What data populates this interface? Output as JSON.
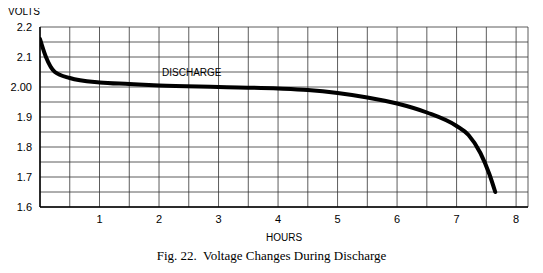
{
  "chart_data": {
    "type": "line",
    "title": "Fig. 22.  Voltage Changes During Discharge",
    "x_label": "HOURS",
    "y_label": "VOLTS",
    "x": [
      0,
      0.1,
      0.25,
      0.5,
      1,
      1.5,
      2,
      3,
      4,
      4.5,
      5,
      5.5,
      6,
      6.5,
      7,
      7.2,
      7.4,
      7.55,
      7.65
    ],
    "values": [
      2.16,
      2.1,
      2.05,
      2.03,
      2.015,
      2.01,
      2.005,
      2.0,
      1.995,
      1.99,
      1.98,
      1.965,
      1.945,
      1.915,
      1.87,
      1.84,
      1.78,
      1.71,
      1.65
    ],
    "color": "#000000",
    "xlim": [
      0,
      8.2
    ],
    "xticks": [
      1,
      2,
      3,
      4,
      5,
      6,
      7,
      8
    ],
    "ylim": [
      1.6,
      2.2
    ],
    "yticks": [
      1.6,
      1.7,
      1.8,
      1.9,
      {
        "value": 2,
        "label": "2.00"
      },
      2.1,
      2.2
    ],
    "grid": true,
    "annotations": [
      {
        "text": "DISCHARGE",
        "x": 2.55,
        "y": 2.05
      }
    ]
  }
}
